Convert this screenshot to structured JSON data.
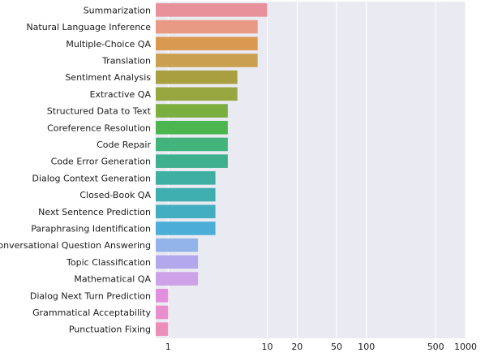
{
  "chart_data": {
    "type": "bar",
    "orientation": "horizontal",
    "x_scale": "log",
    "xlim": [
      0.75,
      1000
    ],
    "xticks": [
      1,
      10,
      20,
      50,
      100,
      500,
      1000
    ],
    "xtick_labels": [
      "1",
      "10",
      "20",
      "50",
      "100",
      "500",
      "1000"
    ],
    "grid": true,
    "categories": [
      "Summarization",
      "Natural Language Inference",
      "Multiple-Choice QA",
      "Translation",
      "Sentiment Analysis",
      "Extractive QA",
      "Structured Data to Text",
      "Coreference Resolution",
      "Code Repair",
      "Code Error Generation",
      "Dialog Context Generation",
      "Closed-Book QA",
      "Next Sentence Prediction",
      "Paraphrasing Identification",
      "Conversational Question Answering",
      "Topic Classification",
      "Mathematical QA",
      "Dialog Next Turn Prediction",
      "Grammatical Acceptability",
      "Punctuation Fixing"
    ],
    "values": [
      10,
      8,
      8,
      8,
      5,
      5,
      4,
      4,
      4,
      4,
      3,
      3,
      3,
      3,
      2,
      2,
      2,
      1,
      1,
      1
    ],
    "colors": [
      "#e8919a",
      "#e89a85",
      "#d99a50",
      "#c9a050",
      "#a8a040",
      "#98a640",
      "#7aae3e",
      "#4bb54e",
      "#42b37a",
      "#3eb08e",
      "#3eafa0",
      "#3eaeae",
      "#42aec0",
      "#4aaed6",
      "#93b4e8",
      "#b3a8ec",
      "#cda2e8",
      "#e38fe0",
      "#e98fcc",
      "#ec8fb8"
    ]
  }
}
